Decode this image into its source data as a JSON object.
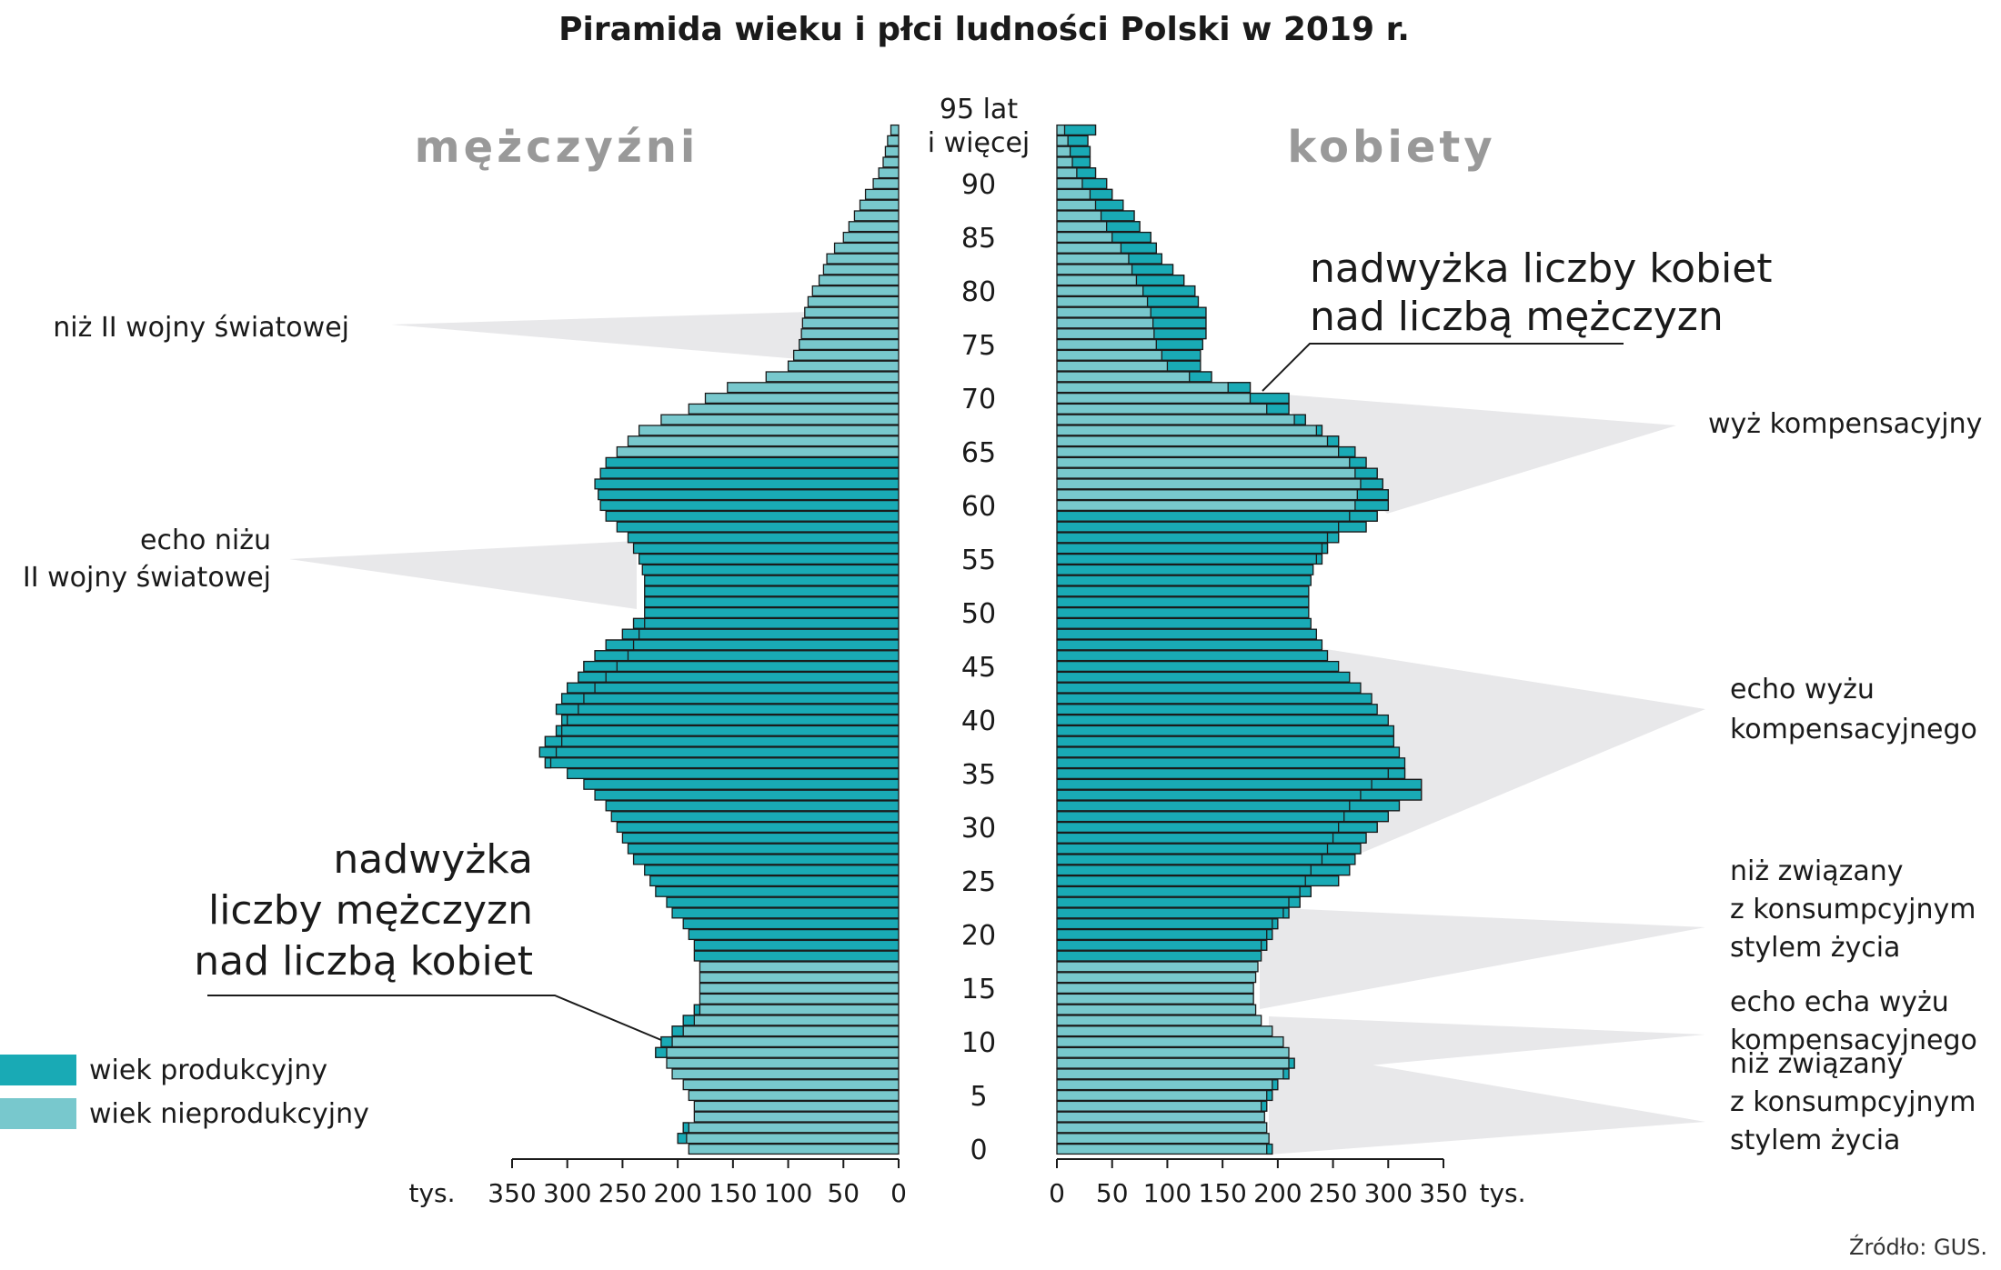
{
  "chart_data": {
    "type": "bar",
    "title": "Piramida wieku i płci ludności Polski w 2019 r.",
    "source": "Źródło: GUS.",
    "unit": "tys.",
    "xlim": [
      0,
      350
    ],
    "x_ticks": [
      0,
      50,
      100,
      150,
      200,
      250,
      300,
      350
    ],
    "categories": [
      0,
      1,
      2,
      3,
      4,
      5,
      6,
      7,
      8,
      9,
      10,
      11,
      12,
      13,
      14,
      15,
      16,
      17,
      18,
      19,
      20,
      21,
      22,
      23,
      24,
      25,
      26,
      27,
      28,
      29,
      30,
      31,
      32,
      33,
      34,
      35,
      36,
      37,
      38,
      39,
      40,
      41,
      42,
      43,
      44,
      45,
      46,
      47,
      48,
      49,
      50,
      51,
      52,
      53,
      54,
      55,
      56,
      57,
      58,
      59,
      60,
      61,
      62,
      63,
      64,
      65,
      66,
      67,
      68,
      69,
      70,
      71,
      72,
      73,
      74,
      75,
      76,
      77,
      78,
      79,
      80,
      81,
      82,
      83,
      84,
      85,
      86,
      87,
      88,
      89,
      90,
      91,
      92,
      93,
      94,
      95
    ],
    "age_labels": [
      {
        "age": 0,
        "text": "0"
      },
      {
        "age": 5,
        "text": "5"
      },
      {
        "age": 10,
        "text": "10"
      },
      {
        "age": 15,
        "text": "15"
      },
      {
        "age": 20,
        "text": "20"
      },
      {
        "age": 25,
        "text": "25"
      },
      {
        "age": 30,
        "text": "30"
      },
      {
        "age": 35,
        "text": "35"
      },
      {
        "age": 40,
        "text": "40"
      },
      {
        "age": 45,
        "text": "45"
      },
      {
        "age": 50,
        "text": "50"
      },
      {
        "age": 55,
        "text": "55"
      },
      {
        "age": 60,
        "text": "60"
      },
      {
        "age": 65,
        "text": "65"
      },
      {
        "age": 70,
        "text": "70"
      },
      {
        "age": 75,
        "text": "75"
      },
      {
        "age": 80,
        "text": "80"
      },
      {
        "age": 85,
        "text": "85"
      },
      {
        "age": 90,
        "text": "90"
      }
    ],
    "top_age_label": [
      "95 lat",
      "i więcej"
    ],
    "working_age": {
      "men": [
        18,
        64
      ],
      "women": [
        18,
        59
      ]
    },
    "series": [
      {
        "name": "mężczyźni",
        "values": [
          190,
          200,
          195,
          185,
          185,
          190,
          195,
          205,
          210,
          220,
          215,
          205,
          195,
          185,
          180,
          180,
          180,
          180,
          185,
          185,
          190,
          195,
          205,
          210,
          220,
          225,
          230,
          240,
          245,
          250,
          255,
          260,
          265,
          275,
          285,
          300,
          320,
          325,
          320,
          310,
          305,
          310,
          305,
          300,
          290,
          285,
          275,
          265,
          250,
          240,
          230,
          230,
          230,
          230,
          232,
          235,
          240,
          245,
          255,
          265,
          270,
          272,
          275,
          270,
          265,
          255,
          245,
          235,
          215,
          190,
          175,
          155,
          120,
          100,
          95,
          90,
          88,
          87,
          85,
          82,
          78,
          72,
          68,
          65,
          58,
          50,
          45,
          40,
          35,
          30,
          23,
          18,
          14,
          12,
          10,
          7
        ],
        "colors": {
          "productive": "#19aab5",
          "nonproductive": "#78c8cd"
        }
      },
      {
        "name": "kobiety",
        "values": [
          195,
          192,
          190,
          188,
          190,
          195,
          200,
          210,
          215,
          210,
          205,
          195,
          185,
          180,
          178,
          178,
          180,
          182,
          185,
          190,
          195,
          200,
          210,
          220,
          230,
          255,
          265,
          270,
          275,
          280,
          290,
          300,
          310,
          330,
          330,
          315,
          315,
          310,
          305,
          305,
          300,
          290,
          285,
          275,
          265,
          255,
          245,
          240,
          235,
          230,
          228,
          228,
          228,
          230,
          232,
          240,
          245,
          255,
          280,
          290,
          300,
          300,
          295,
          290,
          280,
          270,
          255,
          240,
          225,
          210,
          210,
          175,
          140,
          130,
          130,
          132,
          135,
          135,
          135,
          128,
          125,
          115,
          105,
          95,
          90,
          85,
          75,
          70,
          60,
          50,
          45,
          35,
          30,
          30,
          28,
          35
        ],
        "colors": {
          "productive": "#19aab5",
          "nonproductive": "#78c8cd"
        }
      }
    ],
    "gender_labels": {
      "men": "mężczyźni",
      "women": "kobiety"
    },
    "legend": [
      {
        "label": "wiek produkcyjny",
        "color": "#19aab5"
      },
      {
        "label": "wiek nieprodukcyjny",
        "color": "#78c8cd"
      }
    ],
    "annotations": {
      "men_callout": [
        "nadwyżka",
        "liczby mężczyzn",
        "nad liczbą kobiet"
      ],
      "women_callout": [
        "nadwyżka liczby kobiet",
        "nad liczbą mężczyzn"
      ],
      "left": [
        {
          "id": "niz-wojny",
          "lines": [
            "niż II wojny światowej"
          ]
        },
        {
          "id": "echo-nizu",
          "lines": [
            "echo niżu",
            "II wojny światowej"
          ]
        }
      ],
      "right": [
        {
          "id": "wyz-komp",
          "lines": [
            "wyż kompensacyjny"
          ]
        },
        {
          "id": "echo-wyzu",
          "lines": [
            "echo wyżu",
            "kompensacyjnego"
          ]
        },
        {
          "id": "niz-konsump-1",
          "lines": [
            "niż związany",
            "z konsumpcyjnym",
            "stylem życia"
          ]
        },
        {
          "id": "echo-echa",
          "lines": [
            "echo echa wyżu",
            "kompensacyjnego"
          ]
        },
        {
          "id": "niz-konsump-2",
          "lines": [
            "niż związany",
            "z konsumpcyjnym",
            "stylem życia"
          ]
        }
      ]
    }
  }
}
